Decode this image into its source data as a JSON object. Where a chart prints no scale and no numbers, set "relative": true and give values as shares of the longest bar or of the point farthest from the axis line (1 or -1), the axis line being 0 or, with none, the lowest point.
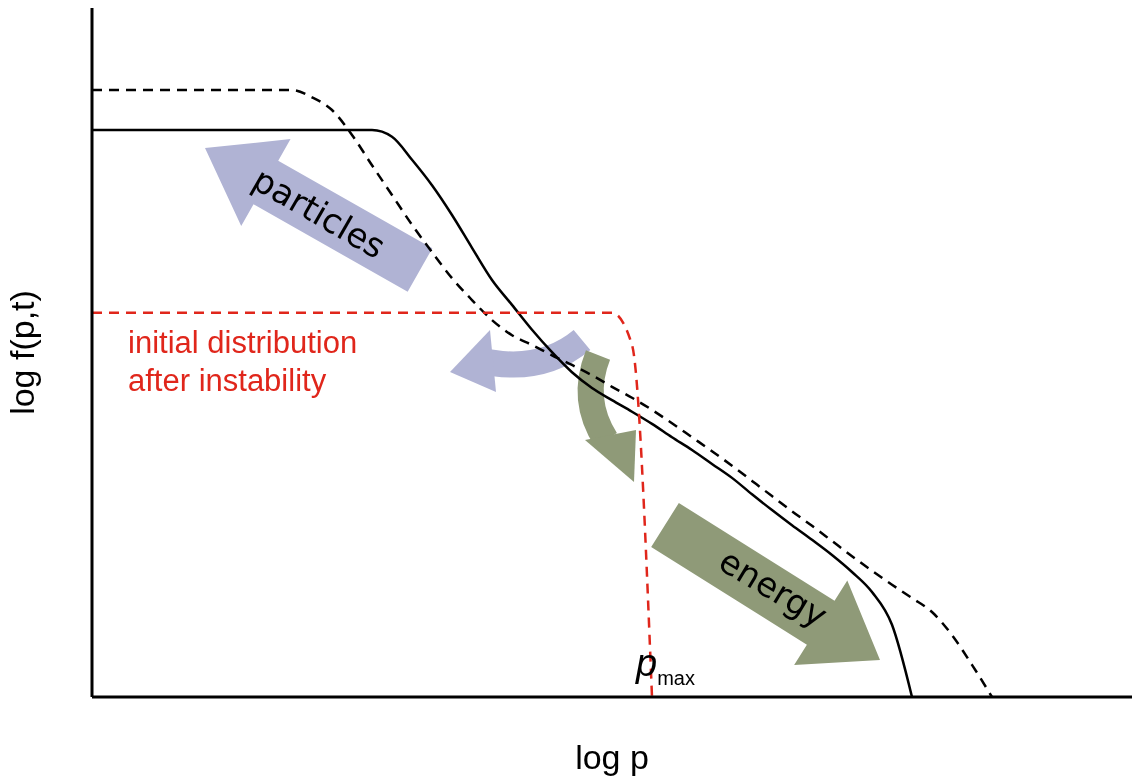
{
  "chart_data": {
    "type": "line",
    "relative": true,
    "xlabel": "log p",
    "ylabel": "log f(p,t)",
    "categories": [
      null,
      null,
      null,
      null,
      null,
      null,
      null,
      null,
      null,
      null,
      null,
      null,
      null,
      null,
      null,
      null,
      null,
      null,
      null,
      null,
      null,
      null,
      null,
      null,
      null,
      null,
      null,
      null,
      null,
      null,
      null,
      null,
      null,
      null,
      null,
      null,
      null,
      null,
      null,
      null,
      null,
      null,
      null,
      null,
      null,
      null,
      null,
      null,
      null,
      null,
      null,
      null,
      null
    ],
    "series": [
      {
        "color": "#000000",
        "line_style": "solid",
        "values": [
          0.934,
          0.934,
          0.934,
          0.934,
          0.934,
          0.934,
          0.934,
          0.934,
          0.934,
          0.934,
          0.934,
          0.934,
          0.934,
          0.934,
          0.934,
          0.923,
          0.885,
          0.843,
          0.794,
          0.74,
          0.687,
          0.646,
          0.605,
          0.568,
          0.535,
          0.509,
          0.489,
          0.47,
          0.45,
          0.428,
          0.407,
          0.384,
          0.361,
          0.334,
          0.308,
          0.283,
          0.259,
          0.234,
          0.206,
          0.173,
          0.119,
          0,
          null,
          null,
          null,
          null,
          null,
          null,
          null,
          null,
          null,
          null,
          null
        ]
      },
      {
        "color": "#000000",
        "line_style": "dashed",
        "values": [
          1,
          1,
          1,
          1,
          1,
          1,
          1,
          1,
          1,
          1,
          1,
          0.988,
          0.967,
          0.926,
          0.876,
          0.827,
          0.778,
          0.733,
          0.69,
          0.654,
          0.621,
          0.596,
          0.58,
          0.563,
          0.547,
          0.53,
          0.511,
          0.493,
          0.473,
          0.451,
          0.428,
          0.405,
          0.381,
          0.356,
          0.331,
          0.306,
          0.282,
          0.257,
          0.232,
          0.208,
          0.185,
          0.163,
          0.14,
          0.102,
          0.053,
          0,
          null,
          null,
          null,
          null,
          null,
          null,
          null
        ]
      },
      {
        "color": "#e0261b",
        "line_style": "dashed",
        "values": [
          0.633,
          0.633,
          0.633,
          0.633,
          0.633,
          0.633,
          0.633,
          0.633,
          0.633,
          0.633,
          0.633,
          0.633,
          0.633,
          0.633,
          0.633,
          0.633,
          0.633,
          0.633,
          0.633,
          0.633,
          0.633,
          0.633,
          0.633,
          0.633,
          0.633,
          0.633,
          0.633,
          0.58,
          0,
          null,
          null,
          null,
          null,
          null,
          null,
          null,
          null,
          null,
          null,
          null,
          null,
          null,
          null,
          null,
          null,
          null,
          null,
          null,
          null,
          null,
          null,
          null,
          null
        ]
      }
    ],
    "annotations": [
      "initial distribution after instability",
      "particles",
      "energy",
      "p$_{max}$"
    ]
  }
}
